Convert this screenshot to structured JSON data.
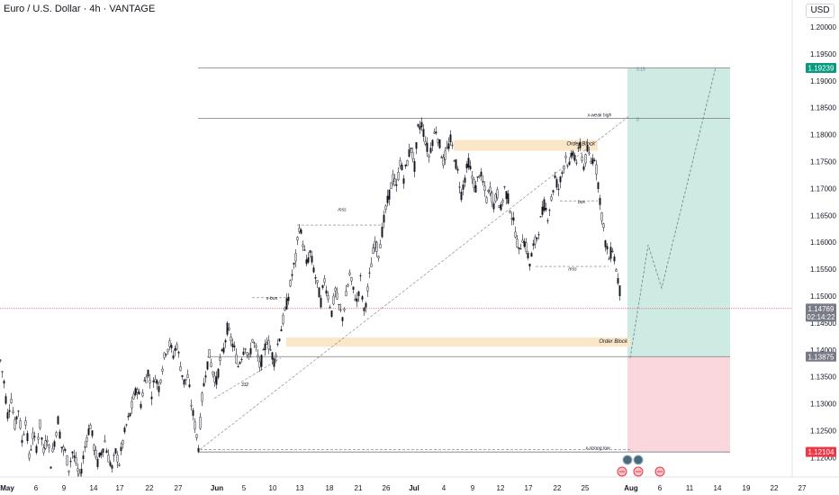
{
  "header": {
    "title": "Euro / U.S. Dollar · 4h · VANTAGE",
    "currency": "USD"
  },
  "chart_data": {
    "type": "candlestick",
    "title": "Euro / U.S. Dollar · 4h · VANTAGE",
    "ylim": [
      1.115,
      1.205
    ],
    "y_ticks": [
      "1.20000",
      "1.19500",
      "1.19000",
      "1.18500",
      "1.18000",
      "1.17500",
      "1.17000",
      "1.16500",
      "1.16000",
      "1.15500",
      "1.15000",
      "1.14500",
      "1.14000",
      "1.13500",
      "1.13000",
      "1.12500",
      "1.12000"
    ],
    "x_ticks": [
      "May",
      "6",
      "9",
      "14",
      "17",
      "22",
      "27",
      "Jun",
      "5",
      "10",
      "13",
      "18",
      "21",
      "26",
      "Jul",
      "4",
      "9",
      "12",
      "17",
      "22",
      "25",
      "Aug",
      "6",
      "11",
      "14",
      "19",
      "22",
      "27"
    ],
    "price_path": [
      [
        0,
        1.138
      ],
      [
        4,
        1.134
      ],
      [
        8,
        1.128
      ],
      [
        12,
        1.131
      ],
      [
        16,
        1.126
      ],
      [
        20,
        1.129
      ],
      [
        24,
        1.123
      ],
      [
        28,
        1.127
      ],
      [
        32,
        1.12
      ],
      [
        36,
        1.124
      ],
      [
        40,
        1.122
      ],
      [
        44,
        1.126
      ],
      [
        48,
        1.121
      ],
      [
        52,
        1.124
      ],
      [
        56,
        1.119
      ],
      [
        60,
        1.123
      ],
      [
        64,
        1.127
      ],
      [
        68,
        1.122
      ],
      [
        72,
        1.121
      ],
      [
        76,
        1.118
      ],
      [
        80,
        1.121
      ],
      [
        84,
        1.119
      ],
      [
        88,
        1.116
      ],
      [
        92,
        1.12
      ],
      [
        96,
        1.124
      ],
      [
        100,
        1.126
      ],
      [
        104,
        1.122
      ],
      [
        108,
        1.119
      ],
      [
        112,
        1.121
      ],
      [
        116,
        1.123
      ],
      [
        120,
        1.12
      ],
      [
        124,
        1.118
      ],
      [
        128,
        1.121
      ],
      [
        132,
        1.119
      ],
      [
        136,
        1.123
      ],
      [
        140,
        1.126
      ],
      [
        144,
        1.128
      ],
      [
        148,
        1.131
      ],
      [
        152,
        1.133
      ],
      [
        156,
        1.13
      ],
      [
        160,
        1.134
      ],
      [
        164,
        1.136
      ],
      [
        168,
        1.132
      ],
      [
        172,
        1.135
      ],
      [
        176,
        1.133
      ],
      [
        180,
        1.137
      ],
      [
        184,
        1.14
      ],
      [
        188,
        1.141
      ],
      [
        192,
        1.139
      ],
      [
        196,
        1.141
      ],
      [
        200,
        1.137
      ],
      [
        204,
        1.134
      ],
      [
        208,
        1.135
      ],
      [
        212,
        1.13
      ],
      [
        216,
        1.126
      ],
      [
        220,
        1.122
      ],
      [
        224,
        1.131
      ],
      [
        228,
        1.136
      ],
      [
        232,
        1.139
      ],
      [
        236,
        1.136
      ],
      [
        240,
        1.134
      ],
      [
        244,
        1.138
      ],
      [
        248,
        1.14
      ],
      [
        252,
        1.144
      ],
      [
        256,
        1.142
      ],
      [
        260,
        1.14
      ],
      [
        264,
        1.137
      ],
      [
        268,
        1.139
      ],
      [
        272,
        1.141
      ],
      [
        276,
        1.138
      ],
      [
        280,
        1.142
      ],
      [
        284,
        1.14
      ],
      [
        288,
        1.137
      ],
      [
        292,
        1.139
      ],
      [
        296,
        1.142
      ],
      [
        300,
        1.14
      ],
      [
        304,
        1.138
      ],
      [
        308,
        1.141
      ],
      [
        312,
        1.144
      ],
      [
        316,
        1.147
      ],
      [
        320,
        1.15
      ],
      [
        324,
        1.154
      ],
      [
        328,
        1.157
      ],
      [
        332,
        1.163
      ],
      [
        336,
        1.16
      ],
      [
        340,
        1.156
      ],
      [
        344,
        1.158
      ],
      [
        348,
        1.155
      ],
      [
        352,
        1.152
      ],
      [
        356,
        1.149
      ],
      [
        360,
        1.153
      ],
      [
        364,
        1.15
      ],
      [
        368,
        1.147
      ],
      [
        372,
        1.151
      ],
      [
        376,
        1.148
      ],
      [
        380,
        1.146
      ],
      [
        384,
        1.15
      ],
      [
        388,
        1.154
      ],
      [
        392,
        1.151
      ],
      [
        396,
        1.149
      ],
      [
        400,
        1.153
      ],
      [
        404,
        1.147
      ],
      [
        408,
        1.151
      ],
      [
        412,
        1.156
      ],
      [
        416,
        1.16
      ],
      [
        420,
        1.158
      ],
      [
        424,
        1.162
      ],
      [
        428,
        1.166
      ],
      [
        432,
        1.169
      ],
      [
        436,
        1.172
      ],
      [
        440,
        1.17
      ],
      [
        444,
        1.175
      ],
      [
        448,
        1.172
      ],
      [
        452,
        1.175
      ],
      [
        456,
        1.178
      ],
      [
        460,
        1.174
      ],
      [
        464,
        1.181
      ],
      [
        468,
        1.182
      ],
      [
        472,
        1.179
      ],
      [
        476,
        1.176
      ],
      [
        480,
        1.179
      ],
      [
        484,
        1.181
      ],
      [
        488,
        1.178
      ],
      [
        492,
        1.175
      ],
      [
        496,
        1.177
      ],
      [
        500,
        1.179
      ],
      [
        504,
        1.176
      ],
      [
        508,
        1.173
      ],
      [
        512,
        1.169
      ],
      [
        516,
        1.172
      ],
      [
        520,
        1.175
      ],
      [
        524,
        1.172
      ],
      [
        528,
        1.17
      ],
      [
        532,
        1.173
      ],
      [
        536,
        1.171
      ],
      [
        540,
        1.168
      ],
      [
        544,
        1.17
      ],
      [
        548,
        1.167
      ],
      [
        552,
        1.169
      ],
      [
        556,
        1.166
      ],
      [
        560,
        1.17
      ],
      [
        564,
        1.168
      ],
      [
        568,
        1.165
      ],
      [
        572,
        1.162
      ],
      [
        576,
        1.158
      ],
      [
        580,
        1.161
      ],
      [
        584,
        1.159
      ],
      [
        588,
        1.156
      ],
      [
        592,
        1.159
      ],
      [
        596,
        1.161
      ],
      [
        600,
        1.164
      ],
      [
        604,
        1.167
      ],
      [
        608,
        1.165
      ],
      [
        612,
        1.168
      ],
      [
        616,
        1.172
      ],
      [
        620,
        1.17
      ],
      [
        624,
        1.173
      ],
      [
        628,
        1.176
      ],
      [
        632,
        1.174
      ],
      [
        636,
        1.177
      ],
      [
        640,
        1.175
      ],
      [
        644,
        1.178
      ],
      [
        648,
        1.174
      ],
      [
        652,
        1.177
      ],
      [
        656,
        1.175
      ],
      [
        660,
        1.176
      ],
      [
        664,
        1.171
      ],
      [
        668,
        1.165
      ],
      [
        672,
        1.16
      ],
      [
        676,
        1.157
      ],
      [
        680,
        1.159
      ],
      [
        684,
        1.155
      ],
      [
        688,
        1.151
      ],
      [
        690,
        1.148
      ]
    ],
    "series": [
      {
        "name": "EURUSD",
        "values": "candles"
      }
    ],
    "horizontal_levels": [
      {
        "price": 1.19239,
        "label": "0.15",
        "x_start": 220
      },
      {
        "price": 1.183,
        "label": "0",
        "x_start": 220
      },
      {
        "price": 1.12104,
        "label": "",
        "x_start": 220
      }
    ],
    "zones": [
      {
        "label": "Order Block",
        "p_top": 1.179,
        "p_bot": 1.1775,
        "x0": 504,
        "x1": 664
      },
      {
        "label": "Order Block",
        "p_top": 1.1423,
        "p_bot": 1.1411,
        "x0": 318,
        "x1": 700
      }
    ],
    "annotations": [
      {
        "text": "x-weak high",
        "x": 666,
        "price": 1.1834
      },
      {
        "text": "mss",
        "x": 380,
        "price": 1.1658
      },
      {
        "text": "x-bos",
        "x": 302,
        "price": 1.1493
      },
      {
        "text": "bos",
        "x": 646,
        "price": 1.1672
      },
      {
        "text": "mss",
        "x": 636,
        "price": 1.1548
      },
      {
        "text": "x-strong low",
        "x": 664,
        "price": 1.1215
      },
      {
        "text": "332",
        "x": 272,
        "price": 1.1333
      }
    ],
    "projection": [
      [
        700,
        1.1385
      ],
      [
        720,
        1.1595
      ],
      [
        735,
        1.1515
      ],
      [
        795,
        1.1925
      ]
    ],
    "position": {
      "entry": 1.13875,
      "target": 1.19239,
      "stop": 1.12104,
      "x0": 697,
      "x1": 811
    },
    "price_labels": [
      {
        "value": "1.19239",
        "price": 1.19239,
        "color": "#089981"
      },
      {
        "value": "1.14769",
        "price": 1.14769,
        "color": "#787b86",
        "sub": "02:14:22"
      },
      {
        "value": "1.13875",
        "price": 1.13875,
        "color": "#787b86"
      },
      {
        "value": "1.12104",
        "price": 1.12104,
        "color": "#f23645"
      }
    ],
    "current_price": 1.14769,
    "colors": {
      "up": "#131722",
      "down": "#131722",
      "target_fill": "#cdebe3",
      "stop_fill": "#fad7dc",
      "zone_fill": "#fbe6c8",
      "current_line": "#f23645"
    }
  }
}
